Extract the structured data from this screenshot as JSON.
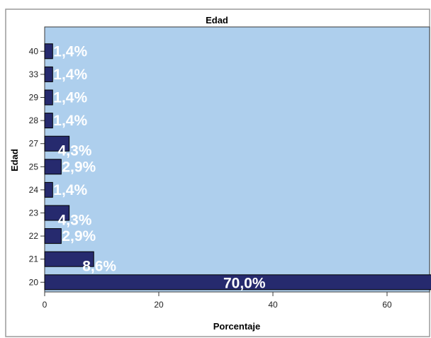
{
  "chart_data": {
    "type": "bar",
    "orientation": "horizontal",
    "title": "Edad",
    "xlabel": "Porcentaje",
    "ylabel": "Edad",
    "categories": [
      "40",
      "33",
      "29",
      "28",
      "27",
      "25",
      "24",
      "23",
      "22",
      "21",
      "20"
    ],
    "values": [
      1.4,
      1.4,
      1.4,
      1.4,
      4.3,
      2.9,
      1.4,
      4.3,
      2.9,
      8.6,
      70.0
    ],
    "data_labels": [
      "1,4%",
      "1,4%",
      "1,4%",
      "1,4%",
      "4,3%",
      "2,9%",
      "1,4%",
      "4,3%",
      "2,9%",
      "8,6%",
      "70,0%"
    ],
    "xticks": [
      "0",
      "20",
      "40",
      "60"
    ],
    "xtick_values": [
      0,
      20,
      40,
      60
    ],
    "xlim": [
      0,
      73
    ],
    "grid": false,
    "legend": "none",
    "colors": {
      "plot_background": "#aecfed",
      "bar_fill": "#262a6e",
      "bar_stroke": "#000000",
      "label_color": "#ffffff"
    }
  }
}
